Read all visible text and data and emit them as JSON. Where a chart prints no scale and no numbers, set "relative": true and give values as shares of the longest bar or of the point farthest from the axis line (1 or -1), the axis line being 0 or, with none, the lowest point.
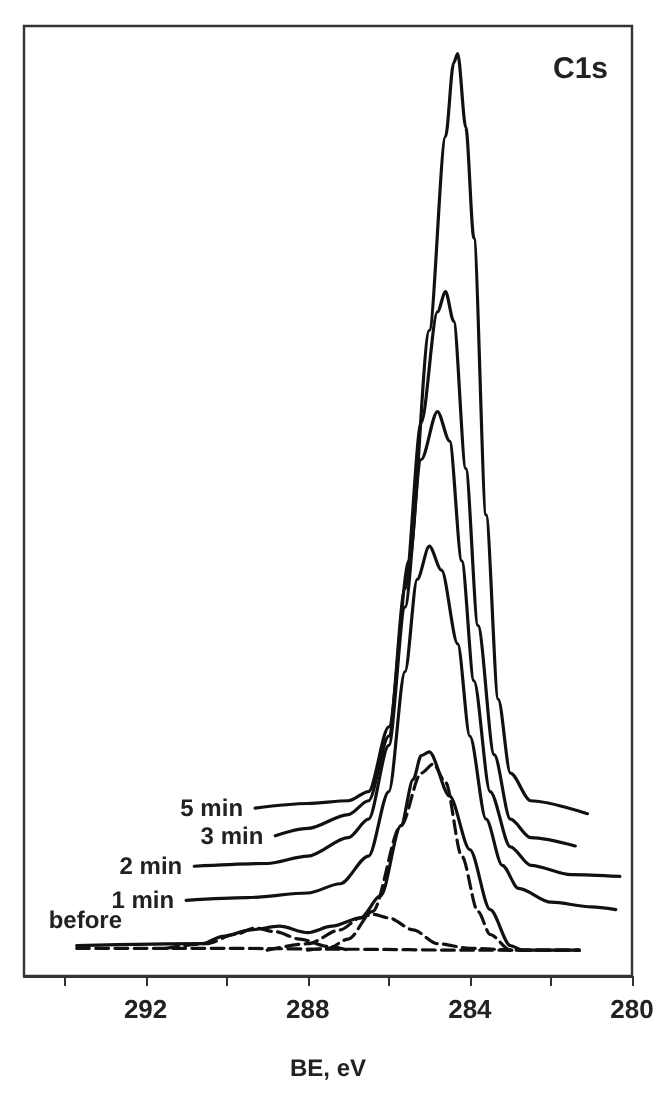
{
  "chart_data": {
    "type": "line",
    "title": "C1s",
    "xlabel": "BE, eV",
    "relative": true,
    "xlim": [
      295,
      280
    ],
    "xticks": [
      {
        "value": 294,
        "label": null
      },
      292,
      {
        "value": 290,
        "label": null
      },
      288,
      {
        "value": 286,
        "label": null
      },
      284,
      {
        "value": 282,
        "label": null
      },
      280
    ],
    "tick_labels": "x",
    "grid": false,
    "legend": false,
    "marker": "none",
    "series": [
      {
        "name": "5 min",
        "color": "#111111",
        "line_style": "solid",
        "x": [
          289.3,
          288,
          287,
          286.5,
          286,
          285.5,
          285.0,
          284.6,
          284.4,
          284.3,
          284.1,
          283.9,
          283.6,
          283.3,
          283,
          282.5,
          281.1
        ],
        "values": [
          0.182,
          0.187,
          0.19,
          0.2,
          0.27,
          0.45,
          0.7,
          0.91,
          0.99,
          1.0,
          0.92,
          0.8,
          0.5,
          0.3,
          0.22,
          0.19,
          0.176
        ]
      },
      {
        "name": "3 min",
        "color": "#111111",
        "line_style": "solid",
        "x": [
          288.8,
          288,
          287,
          286.5,
          286,
          285.6,
          285.2,
          284.8,
          284.6,
          284.4,
          284.1,
          283.8,
          283.4,
          283,
          282.5,
          281.4
        ],
        "values": [
          0.152,
          0.16,
          0.175,
          0.19,
          0.26,
          0.42,
          0.6,
          0.72,
          0.742,
          0.71,
          0.55,
          0.38,
          0.24,
          0.17,
          0.15,
          0.141
        ]
      },
      {
        "name": "2 min",
        "color": "#111111",
        "line_style": "solid",
        "x": [
          290.8,
          289,
          288,
          287,
          286.5,
          286,
          285.6,
          285.2,
          284.8,
          284.5,
          284.2,
          283.9,
          283.5,
          283,
          282.5,
          281.5,
          280.3
        ],
        "values": [
          0.119,
          0.122,
          0.13,
          0.15,
          0.17,
          0.25,
          0.4,
          0.56,
          0.612,
          0.58,
          0.45,
          0.32,
          0.2,
          0.14,
          0.12,
          0.11,
          0.108
        ]
      },
      {
        "name": "1 min",
        "color": "#111111",
        "line_style": "solid",
        "x": [
          291.0,
          289.5,
          288,
          287.2,
          286.5,
          286,
          285.6,
          285.3,
          285.0,
          284.7,
          284.3,
          284.0,
          283.6,
          283.2,
          282.8,
          282,
          281,
          280.4
        ],
        "values": [
          0.082,
          0.085,
          0.09,
          0.1,
          0.13,
          0.2,
          0.33,
          0.43,
          0.466,
          0.44,
          0.36,
          0.26,
          0.17,
          0.12,
          0.095,
          0.08,
          0.075,
          0.072
        ]
      },
      {
        "name": "before",
        "color": "#111111",
        "line_style": "solid",
        "x": [
          293.7,
          290.6,
          290.1,
          289.4,
          288.7,
          288,
          287.4,
          286.7,
          286.2,
          285.7,
          285.4,
          285.2,
          285.0,
          284.5,
          284.0,
          283.5,
          283.0,
          282.7,
          281.3
        ],
        "values": [
          0.033,
          0.035,
          0.043,
          0.05,
          0.054,
          0.047,
          0.054,
          0.063,
          0.087,
          0.163,
          0.213,
          0.239,
          0.243,
          0.195,
          0.137,
          0.072,
          0.033,
          0.028,
          0.028
        ]
      },
      {
        "color": "#111111",
        "line_style": "dashed",
        "x": [
          288,
          287.5,
          287.0,
          286.4,
          285.7,
          285.2,
          284.9,
          284.6,
          284.2,
          283.8,
          283.5,
          283.0,
          281.3
        ],
        "values": [
          0.028,
          0.03,
          0.04,
          0.07,
          0.163,
          0.22,
          0.23,
          0.21,
          0.13,
          0.07,
          0.045,
          0.028,
          0.028
        ]
      },
      {
        "color": "#111111",
        "line_style": "dashed",
        "x": [
          289,
          288,
          287.2,
          286.7,
          286.4,
          286,
          285.4,
          284.8,
          284,
          283
        ],
        "values": [
          0.028,
          0.035,
          0.05,
          0.063,
          0.067,
          0.063,
          0.05,
          0.035,
          0.03,
          0.028
        ]
      },
      {
        "color": "#111111",
        "line_style": "dashed",
        "x": [
          291.5,
          290.5,
          289.8,
          289.3,
          288.8,
          288.2,
          287.5,
          287
        ],
        "values": [
          0.03,
          0.035,
          0.045,
          0.052,
          0.048,
          0.04,
          0.032,
          0.028
        ]
      },
      {
        "color": "#111111",
        "line_style": "dashed",
        "x": [
          293.7,
          290,
          287,
          284,
          281.3
        ],
        "values": [
          0.03,
          0.03,
          0.029,
          0.028,
          0.028
        ]
      }
    ]
  }
}
